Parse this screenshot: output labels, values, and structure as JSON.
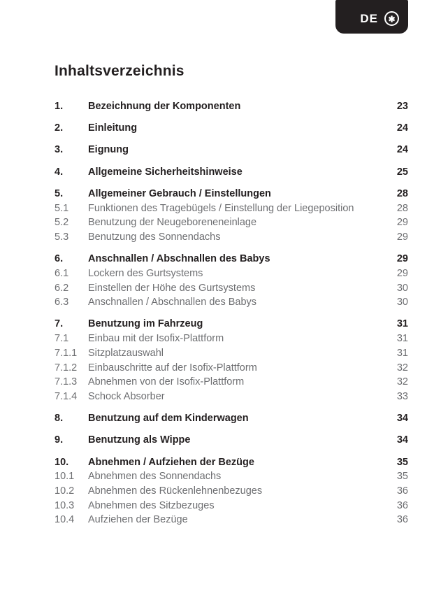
{
  "badge": {
    "label": "DE",
    "icon": "circled-asterisk",
    "icon_glyph": "✱"
  },
  "title": "Inhaltsverzeichnis",
  "colors": {
    "ink": "#231f20",
    "muted_text": "#6d6e71",
    "badge_bg": "#231f20",
    "badge_fg": "#ffffff",
    "page_bg": "#ffffff"
  },
  "toc": {
    "entries": [
      {
        "num": "1.",
        "title": "Bezeichnung der Komponenten",
        "page": "23",
        "level": "main"
      },
      {
        "num": "2.",
        "title": "Einleitung",
        "page": "24",
        "level": "main"
      },
      {
        "num": "3.",
        "title": "Eignung",
        "page": "24",
        "level": "main"
      },
      {
        "num": "4.",
        "title": "Allgemeine Sicherheitshinweise",
        "page": "25",
        "level": "main"
      },
      {
        "num": "5.",
        "title": "Allgemeiner Gebrauch / Einstellungen",
        "page": "28",
        "level": "main"
      },
      {
        "num": "5.1",
        "title": "Funktionen des Tragebügels / Einstellung der Liegeposition",
        "page": "28",
        "level": "sub"
      },
      {
        "num": "5.2",
        "title": "Benutzung der Neugeboreneneinlage",
        "page": "29",
        "level": "sub"
      },
      {
        "num": "5.3",
        "title": "Benutzung des Sonnendachs",
        "page": "29",
        "level": "sub"
      },
      {
        "num": "6.",
        "title": "Anschnallen / Abschnallen des Babys",
        "page": "29",
        "level": "main"
      },
      {
        "num": "6.1",
        "title": "Lockern des Gurtsystems",
        "page": "29",
        "level": "sub"
      },
      {
        "num": "6.2",
        "title": "Einstellen der Höhe des Gurtsystems",
        "page": "30",
        "level": "sub"
      },
      {
        "num": "6.3",
        "title": "Anschnallen / Abschnallen des Babys",
        "page": "30",
        "level": "sub"
      },
      {
        "num": "7.",
        "title": "Benutzung im Fahrzeug",
        "page": "31",
        "level": "main"
      },
      {
        "num": "7.1",
        "title": "Einbau mit der Isofix-Plattform",
        "page": "31",
        "level": "sub"
      },
      {
        "num": "7.1.1",
        "title": "Sitzplatzauswahl",
        "page": "31",
        "level": "sub"
      },
      {
        "num": "7.1.2",
        "title": "Einbauschritte auf der Isofix-Plattform",
        "page": "32",
        "level": "sub"
      },
      {
        "num": "7.1.3",
        "title": "Abnehmen von der Isofix-Plattform",
        "page": "32",
        "level": "sub"
      },
      {
        "num": "7.1.4",
        "title": "Schock Absorber",
        "page": "33",
        "level": "sub"
      },
      {
        "num": "8.",
        "title": "Benutzung auf dem Kinderwagen",
        "page": "34",
        "level": "main"
      },
      {
        "num": "9.",
        "title": "Benutzung als Wippe",
        "page": "34",
        "level": "main"
      },
      {
        "num": "10.",
        "title": "Abnehmen / Aufziehen der Bezüge",
        "page": "35",
        "level": "main"
      },
      {
        "num": "10.1",
        "title": "Abnehmen des Sonnendachs",
        "page": "35",
        "level": "sub"
      },
      {
        "num": "10.2",
        "title": "Abnehmen des Rückenlehnenbezuges",
        "page": "36",
        "level": "sub"
      },
      {
        "num": "10.3",
        "title": "Abnehmen des Sitzbezuges",
        "page": "36",
        "level": "sub"
      },
      {
        "num": "10.4",
        "title": "Aufziehen der Bezüge",
        "page": "36",
        "level": "sub"
      }
    ]
  }
}
